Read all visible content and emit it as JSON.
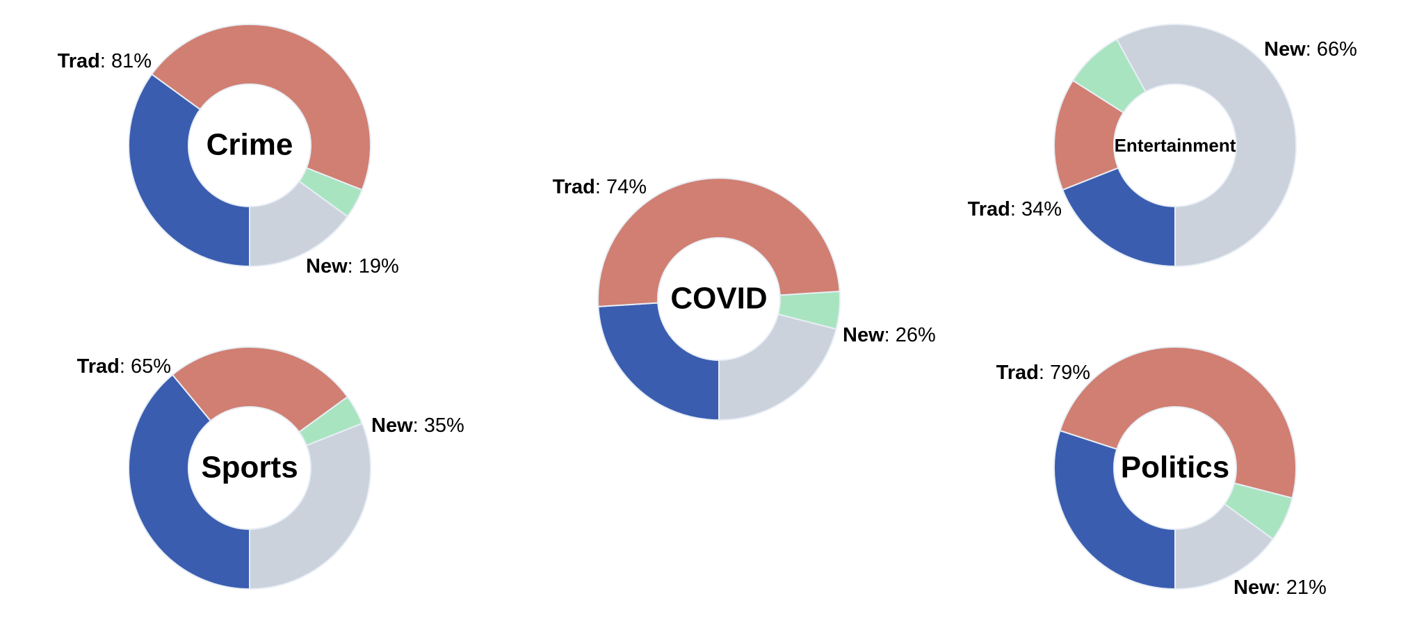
{
  "chart_data": [
    {
      "type": "donut",
      "title": "Crime",
      "groups": [
        {
          "name": "Trad",
          "value": 81,
          "value_label": ": 81%"
        },
        {
          "name": "New",
          "value": 19,
          "value_label": ": 19%"
        }
      ],
      "series": [
        {
          "color": "#3a5db0",
          "values": [
            35
          ]
        },
        {
          "color": "#d07f72",
          "values": [
            46
          ]
        },
        {
          "color": "#a8e4c0",
          "values": [
            4
          ]
        },
        {
          "color": "#cbd2dc",
          "values": [
            15
          ]
        }
      ]
    },
    {
      "type": "donut",
      "title": "COVID",
      "groups": [
        {
          "name": "Trad",
          "value": 74,
          "value_label": ": 74%"
        },
        {
          "name": "New",
          "value": 26,
          "value_label": ": 26%"
        }
      ],
      "series": [
        {
          "color": "#3a5db0",
          "values": [
            24
          ]
        },
        {
          "color": "#d07f72",
          "values": [
            50
          ]
        },
        {
          "color": "#a8e4c0",
          "values": [
            5
          ]
        },
        {
          "color": "#cbd2dc",
          "values": [
            21
          ]
        }
      ]
    },
    {
      "type": "donut",
      "title": "Entertainment",
      "groups": [
        {
          "name": "Trad",
          "value": 34,
          "value_label": ": 34%"
        },
        {
          "name": "New",
          "value": 66,
          "value_label": ": 66%"
        }
      ],
      "series": [
        {
          "color": "#3a5db0",
          "values": [
            19
          ]
        },
        {
          "color": "#d07f72",
          "values": [
            15
          ]
        },
        {
          "color": "#a8e4c0",
          "values": [
            8
          ]
        },
        {
          "color": "#cbd2dc",
          "values": [
            58
          ]
        }
      ]
    },
    {
      "type": "donut",
      "title": "Sports",
      "groups": [
        {
          "name": "Trad",
          "value": 65,
          "value_label": ": 65%"
        },
        {
          "name": "New",
          "value": 35,
          "value_label": ": 35%"
        }
      ],
      "series": [
        {
          "color": "#3a5db0",
          "values": [
            39
          ]
        },
        {
          "color": "#d07f72",
          "values": [
            26
          ]
        },
        {
          "color": "#a8e4c0",
          "values": [
            4
          ]
        },
        {
          "color": "#cbd2dc",
          "values": [
            31
          ]
        }
      ]
    },
    {
      "type": "donut",
      "title": "Politics",
      "groups": [
        {
          "name": "Trad",
          "value": 79,
          "value_label": ": 79%"
        },
        {
          "name": "New",
          "value": 21,
          "value_label": ": 21%"
        }
      ],
      "series": [
        {
          "color": "#3a5db0",
          "values": [
            30
          ]
        },
        {
          "color": "#d07f72",
          "values": [
            49
          ]
        },
        {
          "color": "#a8e4c0",
          "values": [
            6
          ]
        },
        {
          "color": "#cbd2dc",
          "values": [
            15
          ]
        }
      ]
    }
  ]
}
